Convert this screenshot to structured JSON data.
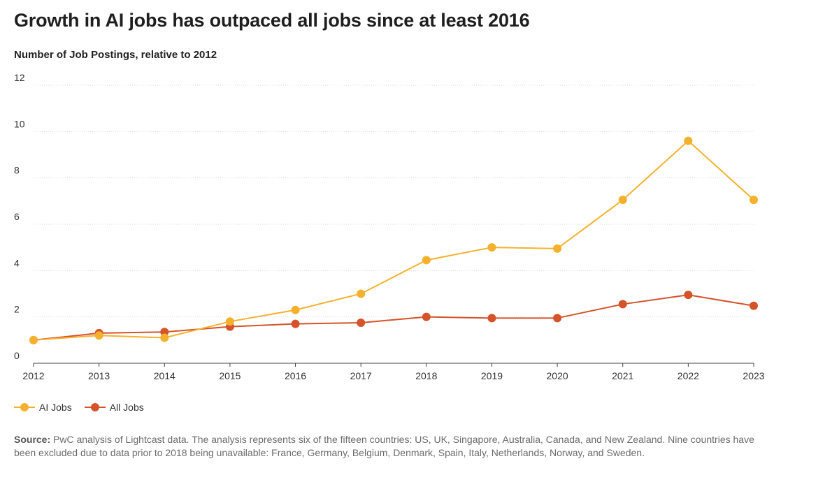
{
  "page": {
    "title": "Growth in AI jobs has outpaced all jobs since at least 2016",
    "subtitle": "Number of Job Postings, relative to 2012",
    "source_label": "Source:",
    "source_text": "PwC analysis of Lightcast data. The analysis represents six of the fifteen countries: US, UK, Singapore, Australia, Canada, and New Zealand. Nine countries have been excluded due to data prior to 2018 being unavailable: France, Germany, Belgium, Denmark, Spain, Italy, Netherlands, Norway, and Sweden."
  },
  "chart_data": {
    "type": "line",
    "title": "Growth in AI jobs has outpaced all jobs since at least 2016",
    "subtitle": "Number of Job Postings, relative to 2012",
    "xlabel": "",
    "ylabel": "",
    "x": [
      "2012",
      "2013",
      "2014",
      "2015",
      "2016",
      "2017",
      "2018",
      "2019",
      "2020",
      "2021",
      "2022",
      "2023"
    ],
    "ylim": [
      0,
      12
    ],
    "yticks": [
      0,
      2,
      4,
      6,
      8,
      10,
      12
    ],
    "grid": "horizontal dotted",
    "legend_position": "bottom-left",
    "series": [
      {
        "name": "AI Jobs",
        "color": "#F5B12E",
        "values": [
          1.0,
          1.2,
          1.1,
          1.8,
          2.3,
          3.0,
          4.45,
          5.0,
          4.95,
          7.05,
          9.6,
          7.05
        ]
      },
      {
        "name": "All Jobs",
        "color": "#D5532A",
        "values": [
          1.0,
          1.3,
          1.35,
          1.58,
          1.7,
          1.75,
          2.0,
          1.95,
          1.95,
          2.55,
          2.95,
          2.48
        ]
      }
    ]
  }
}
